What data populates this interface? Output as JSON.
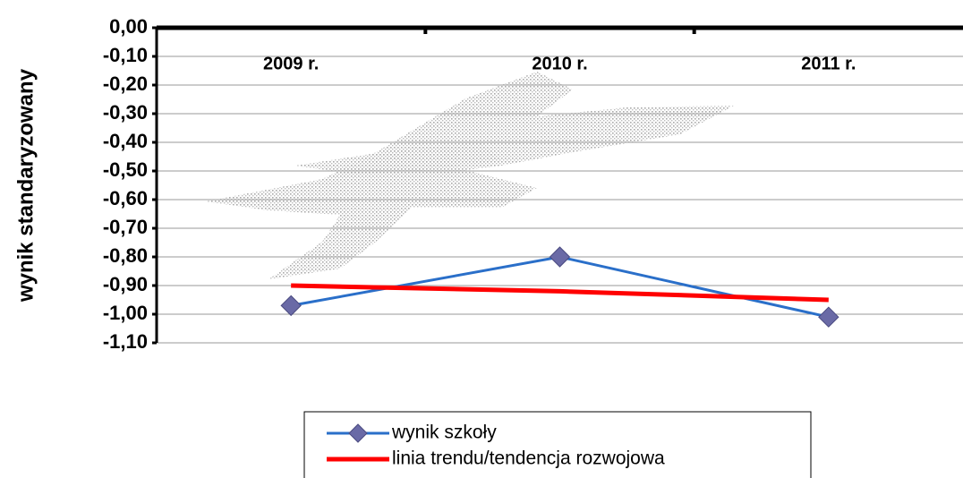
{
  "chart_data": {
    "type": "line",
    "y_label": "wynik standaryzowany",
    "categories": [
      "2009 r.",
      "2010 r.",
      "2011 r."
    ],
    "series": [
      {
        "name": "wynik szkoły",
        "color": "#2a6fc9",
        "marker_color": "#6a6aa6",
        "marker": "diamond",
        "width": 3,
        "values": [
          -0.97,
          -0.8,
          -1.01
        ]
      },
      {
        "name": "linia trendu/tendencja rozwojowa",
        "color": "#ff0000",
        "width": 5,
        "values": [
          -0.9,
          -0.92,
          -0.95
        ]
      }
    ],
    "ylim": [
      -1.1,
      0
    ],
    "yticks": [
      {
        "value": 0,
        "label": "0,00"
      },
      {
        "value": -0.1,
        "label": "-0,10"
      },
      {
        "value": -0.2,
        "label": "-0,20"
      },
      {
        "value": -0.3,
        "label": "-0,30"
      },
      {
        "value": -0.4,
        "label": "-0,40"
      },
      {
        "value": -0.5,
        "label": "-0,50"
      },
      {
        "value": -0.6,
        "label": "-0,60"
      },
      {
        "value": -0.7,
        "label": "-0,70"
      },
      {
        "value": -0.8,
        "label": "-0,80"
      },
      {
        "value": -0.9,
        "label": "-0,90"
      },
      {
        "value": -1.0,
        "label": "-1,00"
      },
      {
        "value": -1.1,
        "label": "-1,10"
      }
    ],
    "grid": true
  }
}
